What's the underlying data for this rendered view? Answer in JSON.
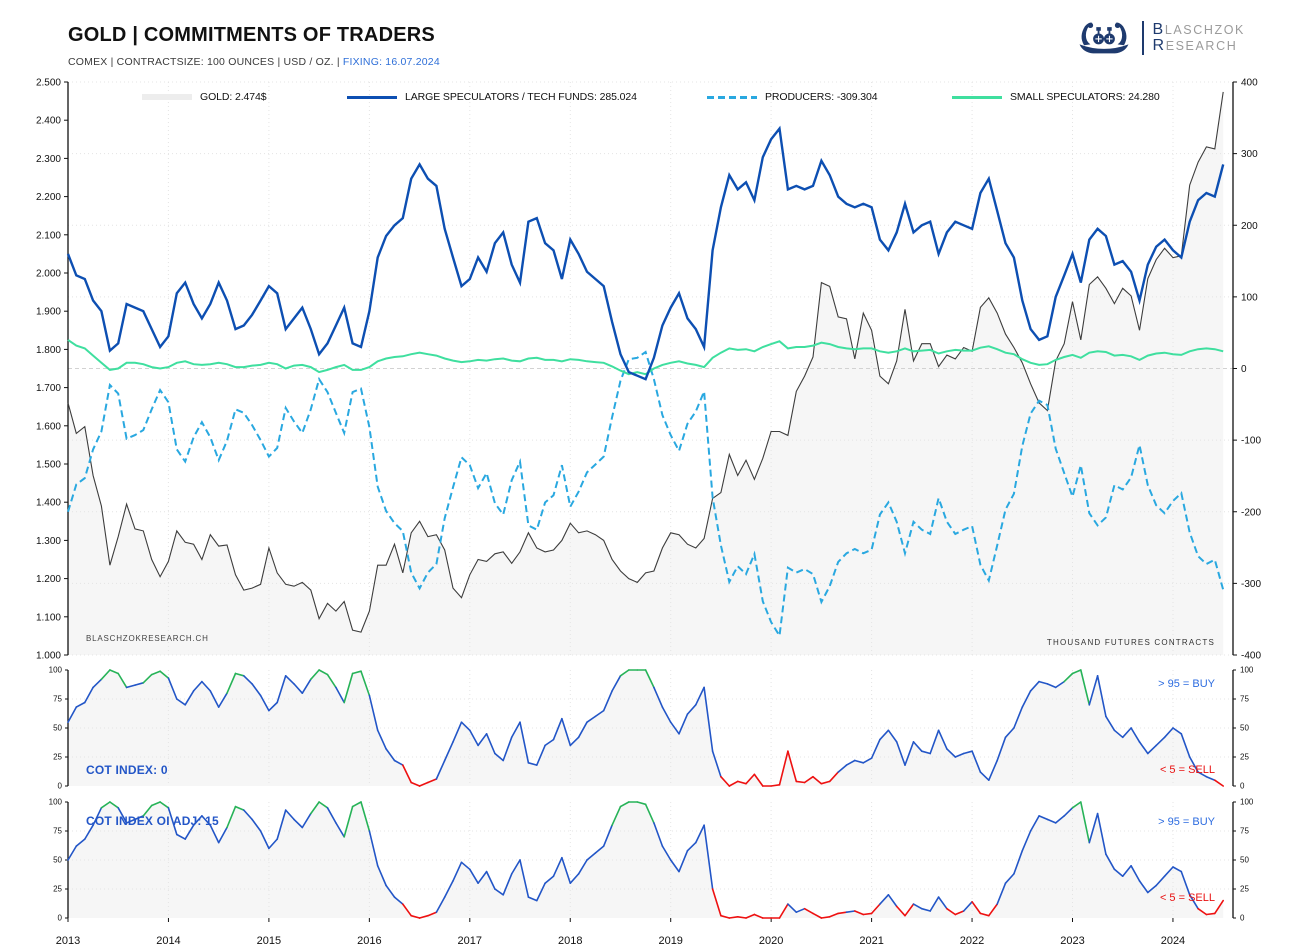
{
  "header": {
    "title": "GOLD | COMMITMENTS OF TRADERS",
    "subtitle_plain": "COMEX | CONTRACTSIZE: 100 OUNCES | USD / OZ. | ",
    "subtitle_fixing": "FIXING: 16.07.2024",
    "logo": {
      "icon": "viking-ship-icon",
      "line1_initial": "B",
      "line1_rest": "LASCHZOK",
      "line2_initial": "R",
      "line2_rest": "ESEARCH"
    }
  },
  "legend": {
    "items": [
      {
        "id": "gold",
        "label": "GOLD: 2.474$",
        "swatch_color": "#ededed",
        "swatch_style": "box"
      },
      {
        "id": "large-speculators",
        "label": "LARGE SPECULATORS / TECH FUNDS: 285.024",
        "swatch_color": "#0d4fb2",
        "swatch_style": "solid"
      },
      {
        "id": "producers",
        "label": "PRODUCERS: -309.304",
        "swatch_color": "#29a8e0",
        "swatch_style": "dashed"
      },
      {
        "id": "small-speculators",
        "label": "SMALL SPECULATORS: 24.280",
        "swatch_color": "#3fdf9f",
        "swatch_style": "solid"
      }
    ]
  },
  "watermarks": {
    "left": "BLASCHZOKRESEARCH.CH",
    "right": "THOUSAND FUTURES CONTRACTS"
  },
  "colors": {
    "accent_blue": "#2e6fd8",
    "navy": "#1e3a6e",
    "logo_gray": "#9b9b9b",
    "gold_line": "#3d3d3d",
    "gold_fill": "#f6f6f6",
    "large_speculators": "#0d4fb2",
    "producers": "#29a8e0",
    "small_speculators": "#3fdf9f",
    "cot_blue": "#2356c7",
    "cot_green": "#27b358",
    "cot_red": "#ee1111",
    "grid": "#e4e4e4",
    "zero_line": "#d2d2d2",
    "axis": "#111111",
    "buy_text": "#2d6ce0",
    "sell_text": "#e81010"
  },
  "chart_data": [
    {
      "id": "main",
      "type": "line",
      "title": "GOLD | COMMITMENTS OF TRADERS",
      "x_ticks": [
        "2013",
        "2014",
        "2015",
        "2016",
        "2017",
        "2018",
        "2019",
        "2020",
        "2021",
        "2022",
        "2023",
        "2024"
      ],
      "y_left_ticks": [
        "2.500",
        "2.400",
        "2.300",
        "2.200",
        "2.100",
        "2.000",
        "1.900",
        "1.800",
        "1.700",
        "1.600",
        "1.500",
        "1.400",
        "1.300",
        "1.200",
        "1.100",
        "1.000"
      ],
      "y_right_ticks": [
        "400",
        "300",
        "200",
        "100",
        "0",
        "-100",
        "-200",
        "-300",
        "-400"
      ],
      "y_left_range": [
        1000,
        2500
      ],
      "y_right_range": [
        -400,
        400
      ],
      "x_range": [
        2013,
        2024.6
      ],
      "right_axis_unit": "THOUSAND FUTURES CONTRACTS",
      "grid": true,
      "legend_position": "top",
      "x": [
        2013.0,
        2013.083,
        2013.167,
        2013.25,
        2013.333,
        2013.417,
        2013.5,
        2013.583,
        2013.667,
        2013.75,
        2013.833,
        2013.917,
        2014.0,
        2014.083,
        2014.167,
        2014.25,
        2014.333,
        2014.417,
        2014.5,
        2014.583,
        2014.667,
        2014.75,
        2014.833,
        2014.917,
        2015.0,
        2015.083,
        2015.167,
        2015.25,
        2015.333,
        2015.417,
        2015.5,
        2015.583,
        2015.667,
        2015.75,
        2015.833,
        2015.917,
        2016.0,
        2016.083,
        2016.167,
        2016.25,
        2016.333,
        2016.417,
        2016.5,
        2016.583,
        2016.667,
        2016.75,
        2016.833,
        2016.917,
        2017.0,
        2017.083,
        2017.167,
        2017.25,
        2017.333,
        2017.417,
        2017.5,
        2017.583,
        2017.667,
        2017.75,
        2017.833,
        2017.917,
        2018.0,
        2018.083,
        2018.167,
        2018.25,
        2018.333,
        2018.417,
        2018.5,
        2018.583,
        2018.667,
        2018.75,
        2018.833,
        2018.917,
        2019.0,
        2019.083,
        2019.167,
        2019.25,
        2019.333,
        2019.417,
        2019.5,
        2019.583,
        2019.667,
        2019.75,
        2019.833,
        2019.917,
        2020.0,
        2020.083,
        2020.167,
        2020.25,
        2020.333,
        2020.417,
        2020.5,
        2020.583,
        2020.667,
        2020.75,
        2020.833,
        2020.917,
        2021.0,
        2021.083,
        2021.167,
        2021.25,
        2021.333,
        2021.417,
        2021.5,
        2021.583,
        2021.667,
        2021.75,
        2021.833,
        2021.917,
        2022.0,
        2022.083,
        2022.167,
        2022.25,
        2022.333,
        2022.417,
        2022.5,
        2022.583,
        2022.667,
        2022.75,
        2022.833,
        2022.917,
        2023.0,
        2023.083,
        2023.167,
        2023.25,
        2023.333,
        2023.417,
        2023.5,
        2023.583,
        2023.667,
        2023.75,
        2023.833,
        2023.917,
        2024.0,
        2024.083,
        2024.167,
        2024.25,
        2024.333,
        2024.417,
        2024.5
      ],
      "series": [
        {
          "name": "GOLD",
          "axis": "left",
          "unit": "USD per oz",
          "style": "solid",
          "color": "#3d3d3d",
          "current_label": "GOLD: 2.474$",
          "values": [
            1660,
            1580,
            1598,
            1470,
            1390,
            1235,
            1310,
            1395,
            1330,
            1325,
            1250,
            1205,
            1245,
            1325,
            1295,
            1290,
            1250,
            1315,
            1285,
            1288,
            1210,
            1170,
            1175,
            1185,
            1280,
            1215,
            1185,
            1180,
            1190,
            1170,
            1095,
            1135,
            1115,
            1140,
            1065,
            1060,
            1115,
            1235,
            1235,
            1290,
            1215,
            1320,
            1350,
            1310,
            1315,
            1275,
            1175,
            1150,
            1210,
            1250,
            1245,
            1265,
            1270,
            1240,
            1270,
            1320,
            1280,
            1270,
            1275,
            1300,
            1345,
            1320,
            1325,
            1315,
            1300,
            1250,
            1220,
            1200,
            1190,
            1215,
            1220,
            1280,
            1320,
            1315,
            1290,
            1280,
            1305,
            1410,
            1425,
            1525,
            1470,
            1510,
            1460,
            1515,
            1585,
            1585,
            1575,
            1690,
            1730,
            1780,
            1975,
            1965,
            1885,
            1880,
            1775,
            1895,
            1850,
            1730,
            1710,
            1770,
            1905,
            1770,
            1815,
            1815,
            1755,
            1785,
            1775,
            1805,
            1795,
            1910,
            1935,
            1895,
            1840,
            1805,
            1765,
            1710,
            1660,
            1640,
            1770,
            1815,
            1925,
            1825,
            1970,
            1990,
            1960,
            1920,
            1960,
            1940,
            1850,
            1985,
            2035,
            2065,
            2040,
            2045,
            2230,
            2290,
            2330,
            2325,
            2474
          ]
        },
        {
          "name": "LARGE SPECULATORS / TECH FUNDS",
          "axis": "right",
          "unit": "thousand futures contracts",
          "style": "solid",
          "color": "#0d4fb2",
          "current": 285.024,
          "values": [
            160,
            130,
            125,
            95,
            80,
            25,
            35,
            90,
            85,
            80,
            55,
            30,
            45,
            105,
            120,
            90,
            70,
            90,
            120,
            95,
            55,
            60,
            75,
            95,
            115,
            105,
            55,
            70,
            85,
            55,
            20,
            35,
            60,
            85,
            35,
            30,
            80,
            155,
            185,
            200,
            210,
            265,
            285,
            265,
            255,
            195,
            155,
            115,
            125,
            155,
            135,
            175,
            190,
            145,
            120,
            205,
            210,
            175,
            165,
            125,
            180,
            160,
            135,
            125,
            115,
            65,
            20,
            -5,
            -10,
            -15,
            15,
            60,
            85,
            105,
            70,
            55,
            30,
            165,
            225,
            270,
            250,
            260,
            235,
            295,
            320,
            335,
            250,
            255,
            250,
            255,
            290,
            270,
            240,
            230,
            225,
            230,
            225,
            180,
            165,
            190,
            230,
            190,
            200,
            205,
            160,
            190,
            205,
            200,
            195,
            245,
            265,
            220,
            175,
            155,
            95,
            55,
            40,
            45,
            100,
            130,
            160,
            120,
            180,
            195,
            185,
            145,
            150,
            135,
            95,
            145,
            170,
            180,
            165,
            155,
            205,
            235,
            245,
            240,
            285
          ]
        },
        {
          "name": "PRODUCERS",
          "axis": "right",
          "unit": "thousand futures contracts",
          "style": "dashed",
          "color": "#29a8e0",
          "current": -309.304,
          "values": [
            -200,
            -162,
            -153,
            -113,
            -88,
            -23,
            -35,
            -98,
            -93,
            -86,
            -57,
            -30,
            -47,
            -113,
            -130,
            -96,
            -75,
            -96,
            -128,
            -101,
            -57,
            -62,
            -79,
            -100,
            -123,
            -111,
            -55,
            -74,
            -90,
            -57,
            -15,
            -33,
            -62,
            -90,
            -33,
            -28,
            -82,
            -165,
            -199,
            -216,
            -227,
            -285,
            -307,
            -285,
            -273,
            -209,
            -166,
            -124,
            -135,
            -167,
            -146,
            -188,
            -204,
            -156,
            -130,
            -219,
            -225,
            -187,
            -177,
            -135,
            -193,
            -172,
            -145,
            -134,
            -123,
            -68,
            -17,
            13,
            15,
            23,
            -15,
            -65,
            -93,
            -115,
            -77,
            -60,
            -32,
            -180,
            -247,
            -298,
            -276,
            -287,
            -259,
            -325,
            -354,
            -373,
            -278,
            -285,
            -280,
            -287,
            -326,
            -304,
            -270,
            -258,
            -252,
            -258,
            -253,
            -204,
            -187,
            -214,
            -258,
            -214,
            -225,
            -231,
            -181,
            -214,
            -231,
            -225,
            -220,
            -274,
            -296,
            -247,
            -197,
            -175,
            -108,
            -63,
            -45,
            -51,
            -112,
            -146,
            -179,
            -135,
            -202,
            -219,
            -208,
            -163,
            -169,
            -152,
            -107,
            -163,
            -191,
            -202,
            -185,
            -174,
            -229,
            -262,
            -273,
            -267,
            -309
          ]
        },
        {
          "name": "SMALL SPECULATORS",
          "axis": "right",
          "unit": "thousand futures contracts",
          "style": "solid",
          "color": "#3fdf9f",
          "current": 24.28,
          "values": [
            40,
            32,
            28,
            18,
            8,
            -2,
            0,
            8,
            8,
            6,
            2,
            0,
            2,
            8,
            10,
            6,
            5,
            6,
            8,
            6,
            2,
            2,
            4,
            5,
            8,
            6,
            0,
            4,
            5,
            2,
            -5,
            -2,
            2,
            5,
            -2,
            -2,
            2,
            10,
            14,
            16,
            17,
            20,
            22,
            20,
            18,
            14,
            11,
            9,
            10,
            12,
            11,
            13,
            14,
            11,
            10,
            14,
            15,
            12,
            12,
            10,
            13,
            12,
            10,
            9,
            8,
            3,
            -3,
            -8,
            -5,
            -8,
            0,
            5,
            8,
            10,
            7,
            5,
            2,
            15,
            22,
            28,
            26,
            27,
            24,
            30,
            34,
            38,
            28,
            30,
            30,
            32,
            36,
            34,
            30,
            28,
            27,
            28,
            28,
            24,
            22,
            24,
            28,
            24,
            25,
            26,
            21,
            24,
            26,
            25,
            25,
            29,
            31,
            27,
            22,
            20,
            13,
            8,
            5,
            6,
            12,
            16,
            19,
            15,
            22,
            24,
            23,
            18,
            19,
            17,
            12,
            18,
            21,
            22,
            20,
            19,
            24,
            27,
            28,
            27,
            24
          ]
        }
      ]
    },
    {
      "id": "cot-index",
      "type": "line",
      "label": "COT INDEX: 0",
      "current": 0,
      "y_range": [
        0,
        100
      ],
      "y_ticks": [
        "100",
        "75",
        "50",
        "25",
        "0"
      ],
      "buy_threshold": 95,
      "sell_threshold": 5,
      "buy_threshold_label": "> 95 = BUY",
      "sell_threshold_label": "< 5 = SELL",
      "values": [
        55,
        68,
        72,
        85,
        92,
        100,
        97,
        85,
        87,
        89,
        96,
        99,
        93,
        75,
        70,
        82,
        90,
        82,
        68,
        80,
        97,
        95,
        88,
        78,
        65,
        72,
        95,
        88,
        80,
        92,
        100,
        96,
        85,
        72,
        97,
        99,
        78,
        48,
        32,
        22,
        18,
        3,
        0,
        3,
        6,
        22,
        38,
        55,
        48,
        35,
        45,
        28,
        22,
        42,
        55,
        20,
        18,
        35,
        40,
        58,
        35,
        42,
        55,
        60,
        65,
        82,
        95,
        100,
        100,
        100,
        85,
        68,
        55,
        45,
        62,
        70,
        85,
        30,
        8,
        0,
        4,
        2,
        10,
        0,
        0,
        1,
        30,
        4,
        3,
        8,
        2,
        4,
        12,
        18,
        22,
        20,
        24,
        40,
        48,
        38,
        18,
        38,
        30,
        28,
        48,
        32,
        25,
        28,
        30,
        12,
        5,
        22,
        42,
        50,
        68,
        82,
        90,
        88,
        85,
        90,
        97,
        100,
        70,
        95,
        60,
        48,
        42,
        50,
        38,
        28,
        35,
        42,
        50,
        45,
        25,
        12,
        8,
        5,
        0
      ]
    },
    {
      "id": "cot-index-oi-adj",
      "type": "line",
      "label": "COT INDEX OI ADJ: 15",
      "current": 15,
      "y_range": [
        0,
        100
      ],
      "y_ticks": [
        "100",
        "75",
        "50",
        "25",
        "0"
      ],
      "buy_threshold": 95,
      "sell_threshold": 5,
      "buy_threshold_label": "> 95 = BUY",
      "sell_threshold_label": "< 5 = SELL",
      "values": [
        50,
        62,
        68,
        80,
        95,
        100,
        95,
        82,
        85,
        88,
        97,
        100,
        95,
        72,
        68,
        80,
        88,
        80,
        65,
        78,
        96,
        93,
        85,
        75,
        60,
        68,
        93,
        85,
        78,
        90,
        100,
        95,
        82,
        70,
        96,
        100,
        75,
        45,
        28,
        18,
        12,
        2,
        0,
        2,
        5,
        18,
        32,
        48,
        42,
        30,
        40,
        25,
        20,
        38,
        50,
        18,
        15,
        30,
        36,
        52,
        30,
        38,
        50,
        56,
        62,
        80,
        96,
        100,
        100,
        98,
        82,
        62,
        50,
        40,
        58,
        65,
        80,
        25,
        2,
        0,
        1,
        0,
        3,
        0,
        0,
        0,
        12,
        5,
        8,
        4,
        0,
        1,
        4,
        5,
        6,
        3,
        4,
        12,
        20,
        10,
        2,
        12,
        8,
        6,
        18,
        8,
        3,
        6,
        14,
        4,
        2,
        12,
        30,
        38,
        58,
        75,
        88,
        85,
        82,
        88,
        95,
        100,
        65,
        90,
        55,
        42,
        36,
        45,
        32,
        22,
        28,
        36,
        44,
        40,
        20,
        8,
        3,
        4,
        15
      ]
    }
  ]
}
